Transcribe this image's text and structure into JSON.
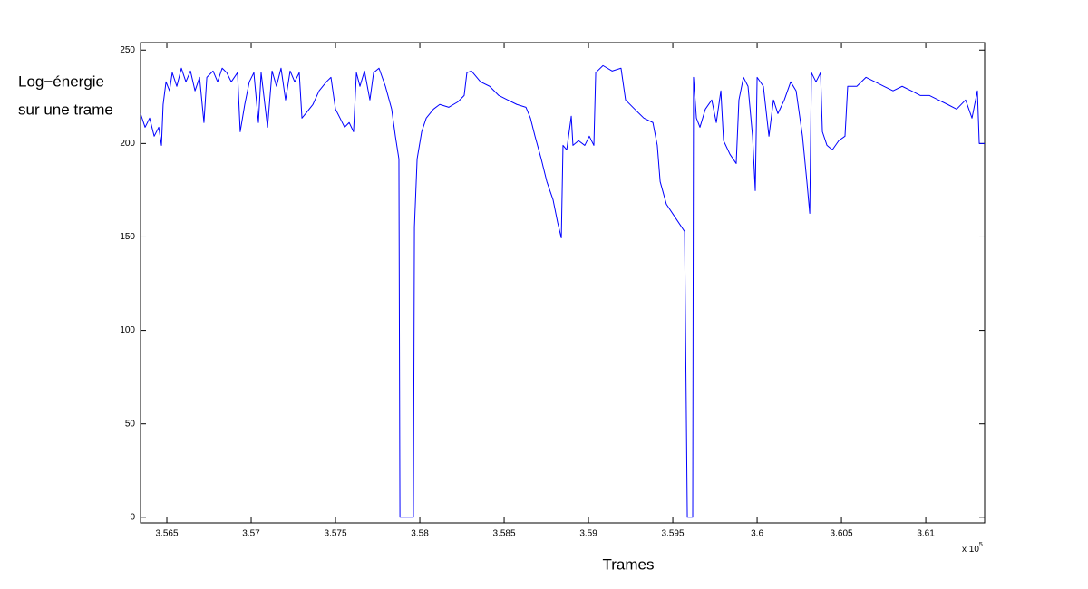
{
  "chart_data": {
    "type": "line",
    "ylabel_lines": [
      "Log−énergie",
      "sur une trame"
    ],
    "xlabel": "Trames",
    "x_multiplier": "x 10",
    "x_multiplier_exponent": "5",
    "color": "#0000ff",
    "grid": false,
    "xlim": [
      356344,
      361349
    ],
    "xticks": [
      {
        "value": 356500,
        "label": "3.565"
      },
      {
        "value": 357000,
        "label": "3.57"
      },
      {
        "value": 357500,
        "label": "3.575"
      },
      {
        "value": 358000,
        "label": "3.58"
      },
      {
        "value": 358500,
        "label": "3.585"
      },
      {
        "value": 359000,
        "label": "3.59"
      },
      {
        "value": 359500,
        "label": "3.595"
      },
      {
        "value": 360000,
        "label": "3.6"
      },
      {
        "value": 360500,
        "label": "3.605"
      },
      {
        "value": 361000,
        "label": "3.61"
      }
    ],
    "ylim": [
      -3,
      254
    ],
    "yticks": [
      0,
      50,
      100,
      150,
      200,
      250
    ],
    "x": [
      356344,
      356371,
      356398,
      356425,
      356452,
      356468,
      356478,
      356495,
      356516,
      356532,
      356559,
      356586,
      356613,
      356640,
      356667,
      356694,
      356720,
      356737,
      356774,
      356801,
      356828,
      356855,
      356882,
      356919,
      356935,
      356962,
      356989,
      357016,
      357043,
      357059,
      357097,
      357124,
      357150,
      357177,
      357204,
      357231,
      357258,
      357285,
      357301,
      357323,
      357366,
      357403,
      357446,
      357473,
      357500,
      357527,
      357554,
      357581,
      357607,
      357624,
      357645,
      357672,
      357704,
      357726,
      357758,
      357796,
      357833,
      357855,
      357876,
      357882,
      357962,
      357968,
      357984,
      358011,
      358038,
      358081,
      358118,
      358172,
      358226,
      358263,
      358279,
      358306,
      358360,
      358414,
      358468,
      358521,
      358575,
      358629,
      358656,
      358683,
      358720,
      358753,
      358790,
      358817,
      358839,
      358849,
      358871,
      358898,
      358908,
      358941,
      358978,
      359005,
      359032,
      359043,
      359086,
      359140,
      359193,
      359220,
      359274,
      359328,
      359382,
      359408,
      359425,
      359462,
      359516,
      359570,
      359586,
      359618,
      359623,
      359640,
      359661,
      359693,
      359731,
      359758,
      359785,
      359801,
      359839,
      359876,
      359892,
      359919,
      359946,
      359973,
      359989,
      360000,
      360037,
      360070,
      360097,
      360123,
      360161,
      360199,
      360231,
      360269,
      360295,
      360312,
      360322,
      360349,
      360376,
      360387,
      360414,
      360446,
      360484,
      360521,
      360537,
      360591,
      360645,
      360699,
      360752,
      360806,
      360860,
      360914,
      360967,
      361021,
      361075,
      361129,
      361183,
      361236,
      361274,
      361306,
      361317,
      361349
    ],
    "values": [
      216.0,
      208.7,
      213.6,
      203.9,
      208.7,
      199.0,
      220.9,
      233.0,
      228.2,
      237.9,
      230.6,
      240.3,
      233.0,
      238.8,
      228.2,
      235.4,
      211.2,
      235.4,
      238.8,
      233.0,
      240.3,
      237.9,
      233.0,
      237.9,
      206.3,
      220.9,
      233.0,
      237.9,
      211.2,
      237.9,
      208.7,
      238.8,
      230.6,
      240.3,
      223.3,
      238.8,
      233.0,
      237.9,
      213.6,
      216.0,
      220.9,
      228.2,
      233.0,
      235.4,
      218.4,
      213.6,
      208.7,
      211.2,
      206.3,
      237.9,
      230.6,
      238.8,
      223.3,
      237.9,
      240.3,
      230.6,
      218.4,
      203.9,
      191.7,
      0,
      0,
      155.3,
      191.7,
      206.3,
      213.6,
      218.4,
      220.9,
      219.4,
      222.3,
      225.7,
      237.9,
      238.8,
      233.0,
      230.6,
      225.7,
      223.3,
      220.9,
      219.4,
      213.6,
      203.9,
      191.7,
      179.6,
      169.9,
      157.8,
      149.5,
      199.0,
      196.6,
      214.6,
      199.0,
      201.5,
      199.0,
      203.9,
      199.0,
      237.9,
      241.7,
      238.8,
      240.3,
      223.3,
      218.4,
      213.6,
      211.2,
      199.0,
      179.6,
      167.5,
      160.2,
      152.9,
      0,
      0,
      235.4,
      213.6,
      208.7,
      218.4,
      223.3,
      211.2,
      228.2,
      201.5,
      194.2,
      189.3,
      223.3,
      235.4,
      230.6,
      203.9,
      174.8,
      235.4,
      230.6,
      203.9,
      223.3,
      216.0,
      223.3,
      233.0,
      228.2,
      203.9,
      179.6,
      162.6,
      237.9,
      233.0,
      237.9,
      206.3,
      199.0,
      196.6,
      201.5,
      203.9,
      230.6,
      230.6,
      235.4,
      233.0,
      230.6,
      228.2,
      230.6,
      228.2,
      225.7,
      225.7,
      223.3,
      220.9,
      218.4,
      223.3,
      213.6,
      228.2,
      200.0,
      200.0
    ]
  }
}
